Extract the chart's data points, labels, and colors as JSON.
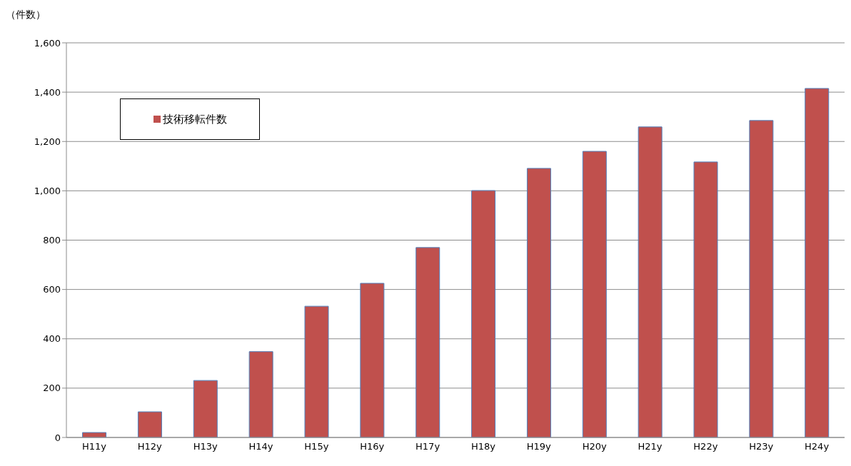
{
  "chart_data": {
    "type": "bar",
    "ylabel": "（件数）",
    "categories": [
      "H11y",
      "H12y",
      "H13y",
      "H14y",
      "H15y",
      "H16y",
      "H17y",
      "H18y",
      "H19y",
      "H20y",
      "H21y",
      "H22y",
      "H23y",
      "H24y"
    ],
    "series": [
      {
        "name": "技術移転件数",
        "color": "#c0504d",
        "values": [
          20,
          104,
          231,
          348,
          532,
          625,
          770,
          1001,
          1091,
          1160,
          1259,
          1117,
          1285,
          1415
        ]
      }
    ],
    "ylim": [
      0,
      1600
    ],
    "yticks": [
      0,
      200,
      400,
      600,
      800,
      {
        "value": 1000,
        "label": "1,000"
      },
      {
        "value": 1200,
        "label": "1,200"
      },
      {
        "value": 1400,
        "label": "1,400"
      },
      {
        "value": 1600,
        "label": "1,600"
      }
    ],
    "grid": "y",
    "legend": "top left"
  }
}
